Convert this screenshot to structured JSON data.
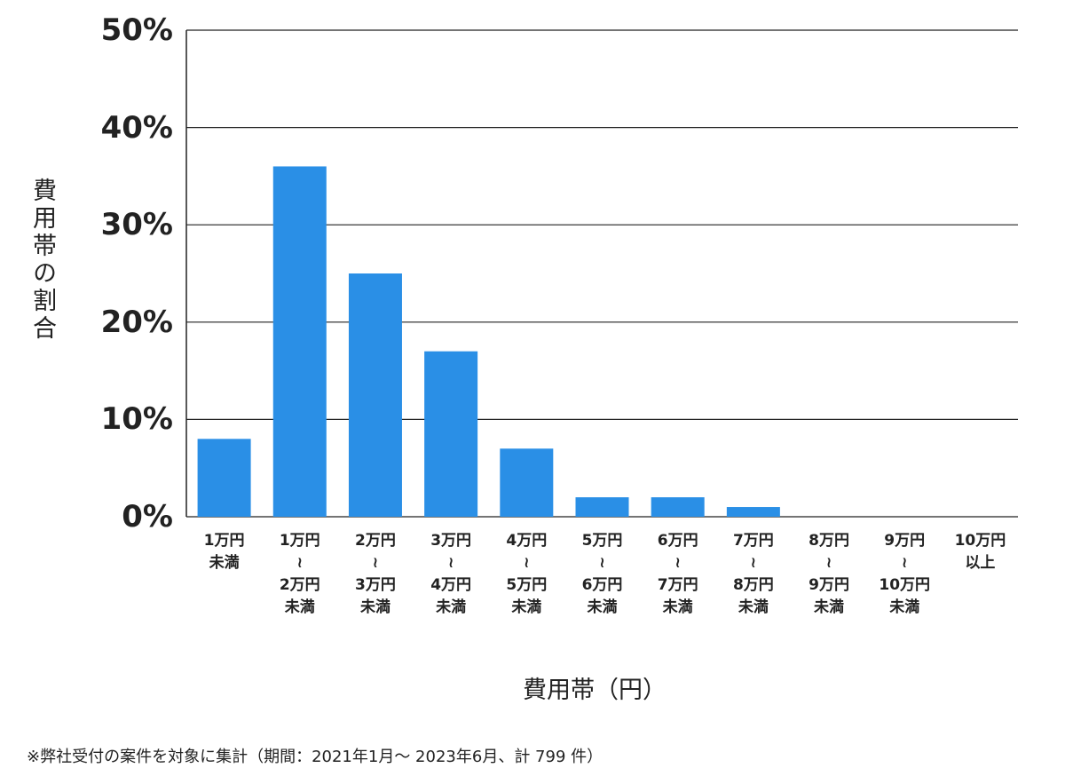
{
  "chart_data": {
    "type": "bar",
    "y_label": "費用帯の割合",
    "x_label": "費用帯（円）",
    "note": "※弊社受付の案件を対象に集計（期間：2021年1月～ 2023年6月、計 799 件）",
    "categories": [
      [
        "1万円",
        "未満"
      ],
      [
        "1万円",
        "≀",
        "2万円",
        "未満"
      ],
      [
        "2万円",
        "≀",
        "3万円",
        "未満"
      ],
      [
        "3万円",
        "≀",
        "4万円",
        "未満"
      ],
      [
        "4万円",
        "≀",
        "5万円",
        "未満"
      ],
      [
        "5万円",
        "≀",
        "6万円",
        "未満"
      ],
      [
        "6万円",
        "≀",
        "7万円",
        "未満"
      ],
      [
        "7万円",
        "≀",
        "8万円",
        "未満"
      ],
      [
        "8万円",
        "≀",
        "9万円",
        "未満"
      ],
      [
        "9万円",
        "≀",
        "10万円",
        "未満"
      ],
      [
        "10万円",
        "以上"
      ]
    ],
    "values": [
      8,
      36,
      25,
      17,
      7,
      2,
      2,
      1,
      0,
      0,
      0
    ],
    "color": "#2a8fe6",
    "ylim": [
      0,
      50
    ],
    "yticks": [
      {
        "value": 0,
        "label": "0%"
      },
      {
        "value": 10,
        "label": "10%"
      },
      {
        "value": 20,
        "label": "20%"
      },
      {
        "value": 30,
        "label": "30%"
      },
      {
        "value": 40,
        "label": "40%"
      },
      {
        "value": 50,
        "label": "50%"
      }
    ],
    "grid": true
  }
}
